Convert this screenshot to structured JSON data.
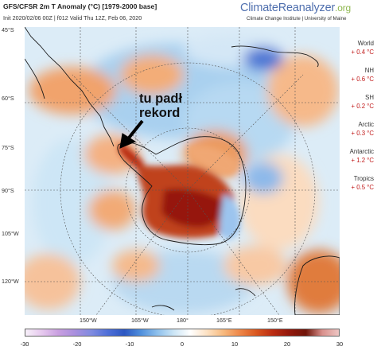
{
  "header": {
    "title": "GFS/CFSR 2m T Anomaly (°C) [1979-2000 base]",
    "subtitle": "Init 2020/02/06 00Z | f012 Valid Thu 12Z, Feb 06, 2020",
    "brand_main": "ClimateReanalyzer",
    "brand_suffix": ".org",
    "institute": "Climate Change Institute | University of Maine"
  },
  "latitude_labels": [
    "45°S",
    "60°S",
    "75°S",
    "90°S",
    "105°W",
    "120°W"
  ],
  "longitude_labels": [
    "150°W",
    "165°W",
    "180°",
    "165°E",
    "150°E"
  ],
  "stats": [
    {
      "label": "World",
      "value": "+ 0.4 °C"
    },
    {
      "label": "NH",
      "value": "+ 0.6 °C"
    },
    {
      "label": "SH",
      "value": "+ 0.2 °C"
    },
    {
      "label": "Arctic",
      "value": "+ 0.3 °C"
    },
    {
      "label": "Antarctic",
      "value": "+ 1.2 °C"
    },
    {
      "label": "Tropics",
      "value": "+ 0.5 °C"
    }
  ],
  "annotation": {
    "line1": "tu padł",
    "line2": "rekord"
  },
  "colorbar": {
    "ticks": [
      "-30",
      "-20",
      "-10",
      "0",
      "10",
      "20",
      "30"
    ],
    "colors": [
      "#f7f0f9",
      "#e6c8ee",
      "#c99fe0",
      "#a98fde",
      "#7f8be0",
      "#4e6fd8",
      "#2c57c2",
      "#4f8fdc",
      "#8ec0ec",
      "#cde6f6",
      "#ffffff",
      "#fde2c4",
      "#f7b97e",
      "#ee8748",
      "#d9571f",
      "#bb2c12",
      "#93180c",
      "#6f1408",
      "#d9908c",
      "#eec6c4"
    ]
  },
  "colors": {
    "warm": "#d9682a",
    "hot": "#a8200d",
    "cold": "#5a7fd8",
    "stat_value": "#c01818",
    "brand_blue": "#4f6fae",
    "brand_green": "#8fb74f"
  }
}
